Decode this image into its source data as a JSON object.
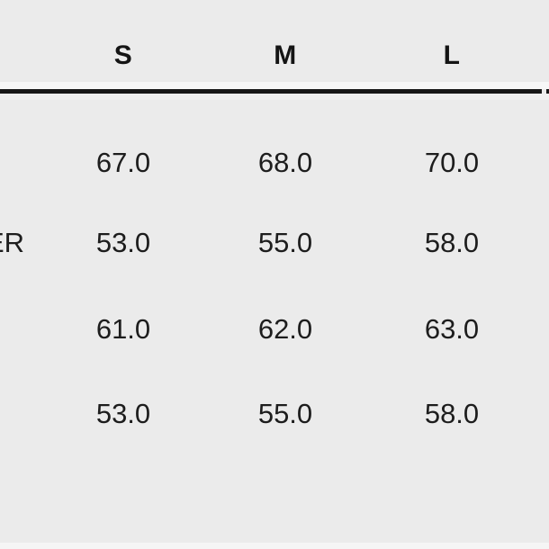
{
  "table": {
    "columns": [
      "S",
      "M",
      "L"
    ],
    "row_label_fragment": "ER",
    "rows": [
      {
        "values": [
          "67.0",
          "68.0",
          "70.0"
        ]
      },
      {
        "values": [
          "53.0",
          "55.0",
          "58.0"
        ]
      },
      {
        "values": [
          "61.0",
          "62.0",
          "63.0"
        ]
      },
      {
        "values": [
          "53.0",
          "55.0",
          "58.0"
        ]
      }
    ]
  },
  "chart_data": {
    "type": "table",
    "title": "",
    "columns": [
      "S",
      "M",
      "L"
    ],
    "visible_row_label_fragment": "R",
    "rows": [
      [
        67.0,
        68.0,
        70.0
      ],
      [
        53.0,
        55.0,
        58.0
      ],
      [
        61.0,
        62.0,
        63.0
      ],
      [
        53.0,
        55.0,
        58.0
      ]
    ],
    "layout": "size-chart table, header row separated by thick black rule, values center-aligned per column, row labels cropped off left edge"
  },
  "colors": {
    "background": "#ebebeb",
    "text": "#1d1d1d",
    "header_text": "#141414",
    "rule": "#1a1a1a"
  }
}
